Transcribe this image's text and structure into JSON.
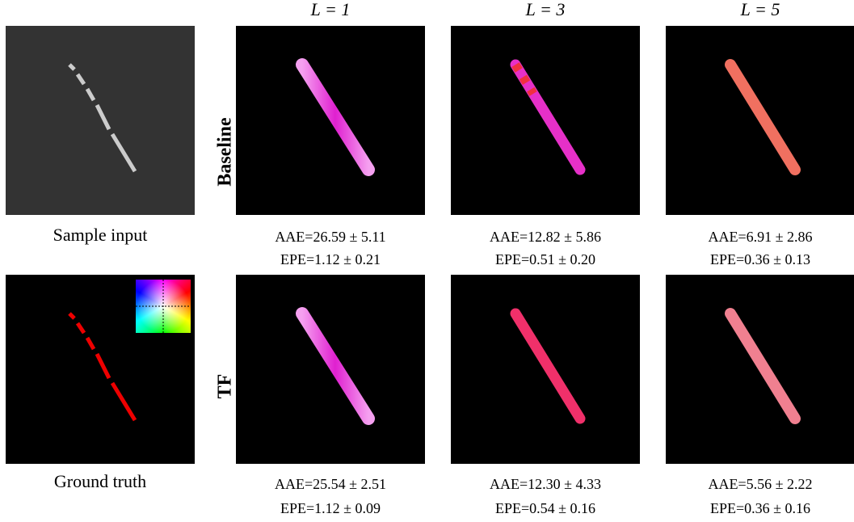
{
  "columns": [
    "L = 1",
    "L = 3",
    "L = 5"
  ],
  "left_captions": [
    "Sample input",
    "Ground truth"
  ],
  "rows": [
    {
      "label": "Baseline",
      "metrics": [
        {
          "aae": "AAE=26.59 ± 5.11",
          "epe": "EPE=1.12 ± 0.21"
        },
        {
          "aae": "AAE=12.82 ± 5.86",
          "epe": "EPE=0.51 ± 0.20"
        },
        {
          "aae": "AAE=6.91 ± 2.86",
          "epe": "EPE=0.36 ± 0.13"
        }
      ]
    },
    {
      "label": "TF",
      "metrics": [
        {
          "aae": "AAE=25.54 ± 2.51",
          "epe": "EPE=1.12 ± 0.09"
        },
        {
          "aae": "AAE=12.30 ± 4.33",
          "epe": "EPE=0.54 ± 0.16"
        },
        {
          "aae": "AAE=5.56 ± 2.22",
          "epe": "EPE=0.36 ± 0.16"
        }
      ]
    }
  ]
}
